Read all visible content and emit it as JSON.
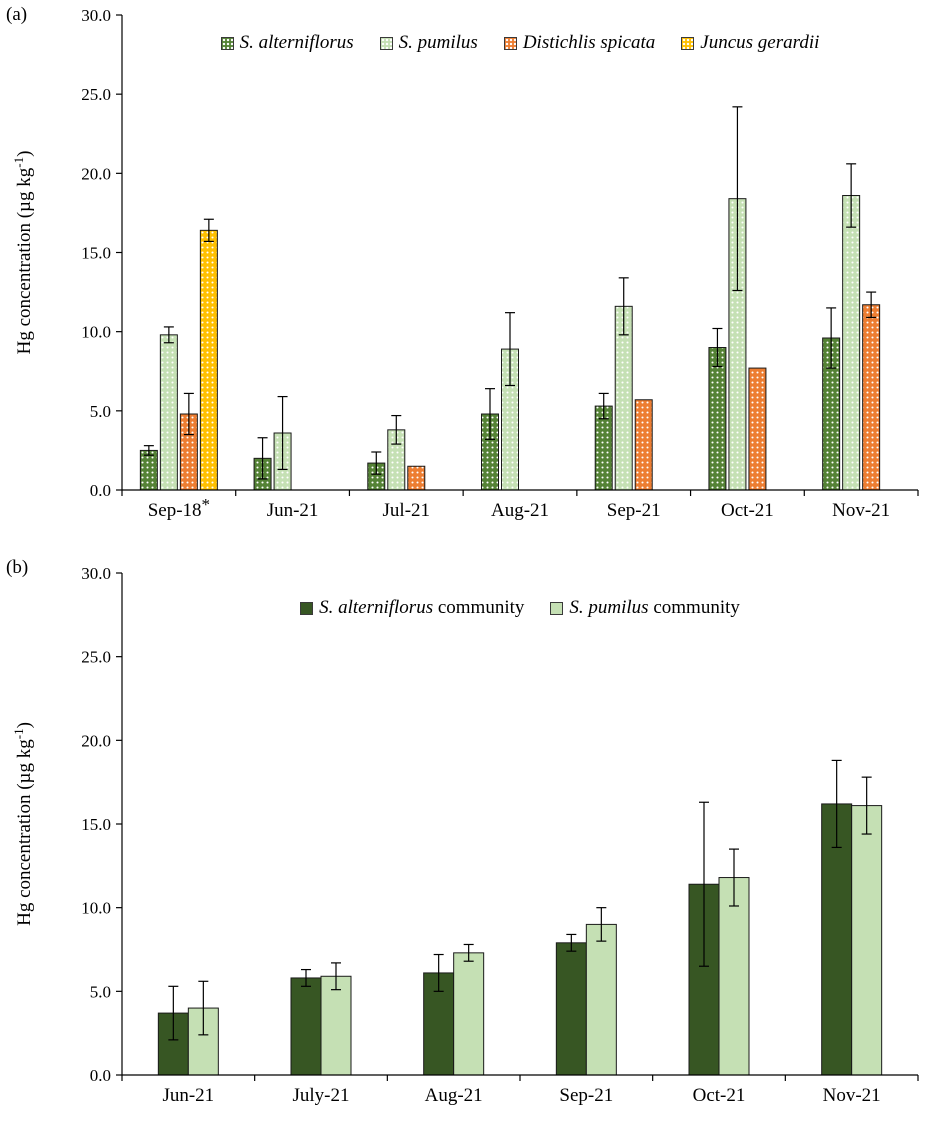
{
  "chart_data": [
    {
      "type": "bar",
      "panel_label": "(a)",
      "title": "",
      "xlabel": "",
      "ylabel": {
        "pre": "Hg concentration (µg kg",
        "sup": "-1",
        "post": ")"
      },
      "ylim": [
        0,
        30
      ],
      "ytick_step": 5,
      "ytick_labels": [
        "0.0",
        "5.0",
        "10.0",
        "15.0",
        "20.0",
        "25.0",
        "30.0"
      ],
      "grid": false,
      "legend_position": "top-inside",
      "categories": [
        "Sep-18*",
        "Jun-21",
        "Jul-21",
        "Aug-21",
        "Sep-21",
        "Oct-21",
        "Nov-21"
      ],
      "series": [
        {
          "name": "S. alterniflorus",
          "legend_italic": "S. alterniflorus",
          "legend_regular": "",
          "color": "#548235",
          "pattern": "dots",
          "values": [
            2.5,
            2.0,
            1.7,
            4.8,
            5.3,
            9.0,
            9.6
          ],
          "errors": [
            0.3,
            1.3,
            0.7,
            1.6,
            0.8,
            1.2,
            1.9
          ]
        },
        {
          "name": "S. pumilus",
          "legend_italic": "S. pumilus",
          "legend_regular": "",
          "color": "#c5e0b4",
          "pattern": "dots",
          "values": [
            9.8,
            3.6,
            3.8,
            8.9,
            11.6,
            18.4,
            18.6
          ],
          "errors": [
            0.5,
            2.3,
            0.9,
            2.3,
            1.8,
            5.8,
            2.0
          ]
        },
        {
          "name": "Distichlis spicata",
          "legend_italic": "Distichlis spicata",
          "legend_regular": "",
          "color": "#ed7d31",
          "pattern": "dots",
          "values": [
            4.8,
            null,
            1.5,
            null,
            5.7,
            7.7,
            11.7
          ],
          "errors": [
            1.3,
            null,
            null,
            null,
            null,
            null,
            0.8
          ]
        },
        {
          "name": "Juncus gerardii",
          "legend_italic": "Juncus gerardii",
          "legend_regular": "",
          "color": "#ffc000",
          "pattern": "dots",
          "values": [
            16.4,
            null,
            null,
            null,
            null,
            null,
            null
          ],
          "errors": [
            0.7,
            null,
            null,
            null,
            null,
            null,
            null
          ]
        }
      ]
    },
    {
      "type": "bar",
      "panel_label": "(b)",
      "title": "",
      "xlabel": "",
      "ylabel": {
        "pre": "Hg concentration (µg kg",
        "sup": "-1",
        "post": ")"
      },
      "ylim": [
        0,
        30
      ],
      "ytick_step": 5,
      "ytick_labels": [
        "0.0",
        "5.0",
        "10.0",
        "15.0",
        "20.0",
        "25.0",
        "30.0"
      ],
      "grid": false,
      "legend_position": "top-inside",
      "categories": [
        "Jun-21",
        "July-21",
        "Aug-21",
        "Sep-21",
        "Oct-21",
        "Nov-21"
      ],
      "series": [
        {
          "name": "S. alterniflorus community",
          "legend_italic": "S. alterniflorus",
          "legend_regular": " community",
          "color": "#375623",
          "pattern": "solid",
          "values": [
            3.7,
            5.8,
            6.1,
            7.9,
            11.4,
            16.2
          ],
          "errors": [
            1.6,
            0.5,
            1.1,
            0.5,
            4.9,
            2.6
          ]
        },
        {
          "name": "S. pumilus community",
          "legend_italic": "S. pumilus",
          "legend_regular": " community",
          "color": "#c5e0b4",
          "pattern": "solid",
          "values": [
            4.0,
            5.9,
            7.3,
            9.0,
            11.8,
            16.1
          ],
          "errors": [
            1.6,
            0.8,
            0.5,
            1.0,
            1.7,
            1.7
          ]
        }
      ]
    }
  ]
}
